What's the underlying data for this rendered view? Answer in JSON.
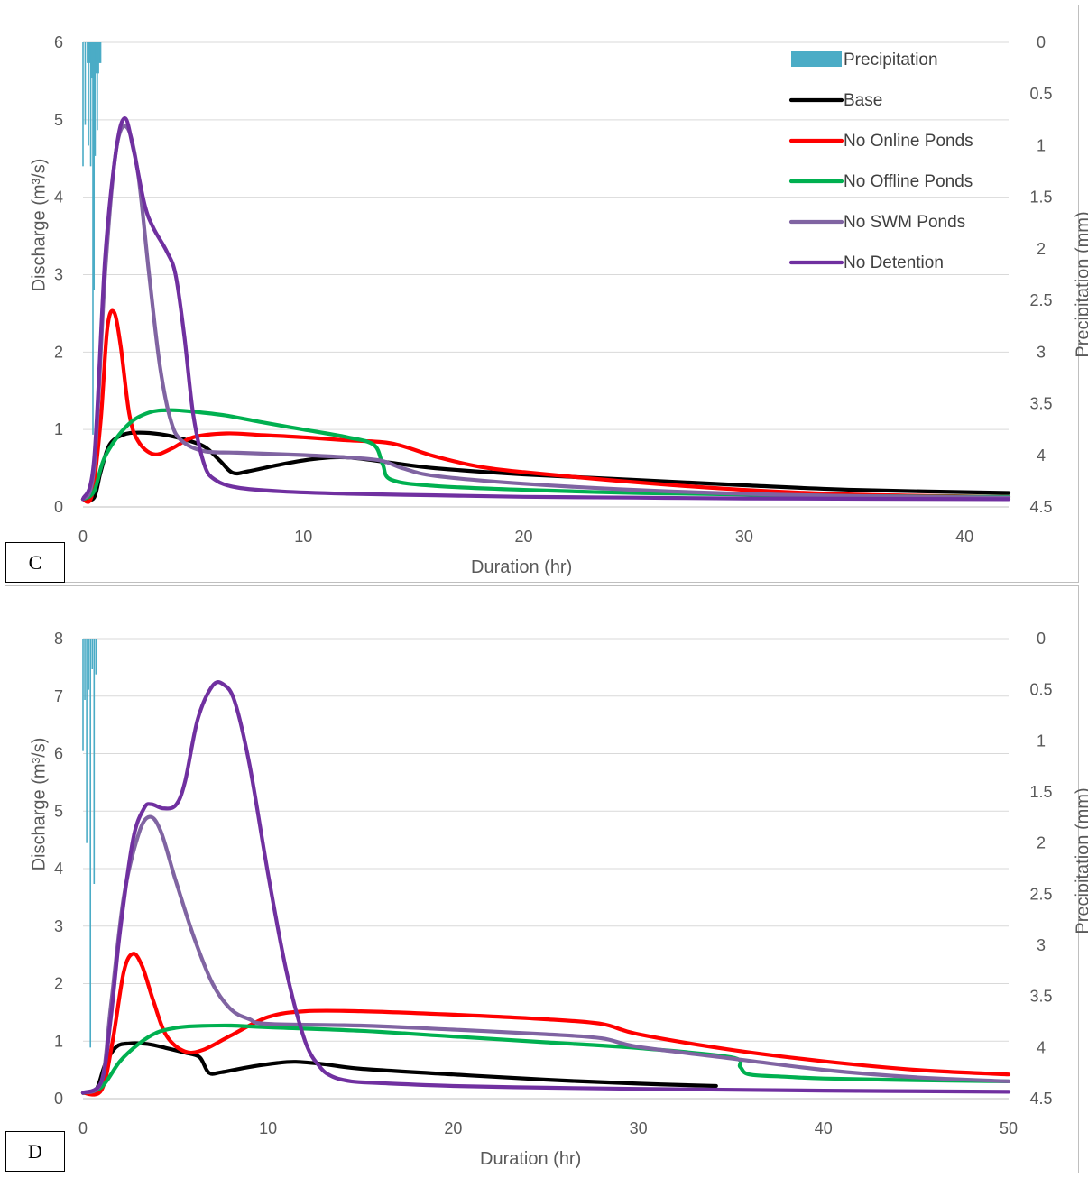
{
  "chart_data": [
    {
      "type": "line",
      "panel_label": "C",
      "xlabel": "Duration (hr)",
      "ylabel": "Discharge (m³/s)",
      "y2label": "Precipitation (mm)",
      "xlim": [
        0,
        42
      ],
      "xticks": [
        0,
        10,
        20,
        30,
        40
      ],
      "ylim": [
        0,
        6
      ],
      "yticks": [
        0,
        1,
        2,
        3,
        4,
        5,
        6
      ],
      "y2lim": [
        0,
        4.5
      ],
      "y2reversed": true,
      "y2ticks": [
        0,
        0.5,
        1,
        1.5,
        2,
        2.5,
        3,
        3.5,
        4,
        4.5
      ],
      "legend_position": "top-right",
      "precipitation": {
        "name": "Precipitation",
        "color": "#4BACC6",
        "x": [
          0,
          0.1,
          0.2,
          0.25,
          0.3,
          0.35,
          0.4,
          0.45,
          0.5,
          0.55,
          0.6,
          0.65,
          0.7,
          0.75,
          0.8
        ],
        "values": [
          1.2,
          0.8,
          0.2,
          1.0,
          0.2,
          1.2,
          0.35,
          3.8,
          2.4,
          1.1,
          0.3,
          0.85,
          0.3,
          0.2,
          0.2
        ]
      },
      "series": [
        {
          "name": "Base",
          "color": "#000000",
          "x": [
            0,
            0.5,
            0.8,
            1.2,
            1.8,
            2.5,
            3.5,
            4.5,
            5.5,
            6.2,
            6.8,
            7.5,
            9,
            10.5,
            12,
            14,
            16,
            20,
            25,
            30,
            35,
            42
          ],
          "values": [
            0.1,
            0.12,
            0.45,
            0.8,
            0.93,
            0.96,
            0.94,
            0.88,
            0.78,
            0.6,
            0.44,
            0.46,
            0.55,
            0.62,
            0.64,
            0.57,
            0.5,
            0.42,
            0.35,
            0.28,
            0.22,
            0.18
          ]
        },
        {
          "name": "No Online Ponds",
          "color": "#FF0000",
          "x": [
            0,
            0.4,
            0.8,
            1.1,
            1.4,
            1.7,
            2.1,
            2.5,
            3.2,
            4,
            5,
            6.5,
            8,
            10,
            12,
            14,
            16,
            18,
            20,
            25,
            30,
            35,
            42
          ],
          "values": [
            0.1,
            0.15,
            1.1,
            2.3,
            2.52,
            2.1,
            1.2,
            0.85,
            0.68,
            0.75,
            0.9,
            0.95,
            0.93,
            0.9,
            0.86,
            0.82,
            0.65,
            0.52,
            0.45,
            0.32,
            0.22,
            0.16,
            0.13
          ]
        },
        {
          "name": "No Offline Ponds",
          "color": "#00B050",
          "x": [
            0,
            0.5,
            1,
            2,
            3,
            4,
            5,
            6.5,
            8,
            10,
            12,
            13.2,
            13.6,
            14,
            16,
            20,
            25,
            30,
            35,
            42
          ],
          "values": [
            0.1,
            0.2,
            0.65,
            1.05,
            1.22,
            1.25,
            1.23,
            1.18,
            1.1,
            1.0,
            0.9,
            0.8,
            0.55,
            0.35,
            0.27,
            0.22,
            0.18,
            0.16,
            0.14,
            0.13
          ]
        },
        {
          "name": "No SWM Ponds",
          "color": "#8064A2",
          "x": [
            0,
            0.5,
            1,
            1.5,
            2,
            2.5,
            3,
            3.5,
            4,
            4.5,
            5.5,
            7,
            10,
            12,
            13.5,
            14.5,
            16,
            20,
            25,
            30,
            35,
            42
          ],
          "values": [
            0.1,
            0.5,
            3.0,
            4.6,
            4.9,
            4.3,
            3.0,
            1.8,
            1.1,
            0.85,
            0.72,
            0.7,
            0.67,
            0.64,
            0.6,
            0.5,
            0.4,
            0.3,
            0.22,
            0.17,
            0.14,
            0.12
          ]
        },
        {
          "name": "No Detention",
          "color": "#7030A0",
          "x": [
            0,
            0.5,
            1,
            1.5,
            1.9,
            2.3,
            2.8,
            3.2,
            3.8,
            4.2,
            4.6,
            5,
            5.5,
            6,
            7,
            9,
            12,
            16,
            20,
            25,
            30,
            42
          ],
          "values": [
            0.1,
            0.6,
            3.2,
            4.6,
            5.02,
            4.6,
            3.9,
            3.6,
            3.3,
            3.0,
            2.2,
            1.2,
            0.55,
            0.35,
            0.25,
            0.2,
            0.17,
            0.15,
            0.13,
            0.12,
            0.11,
            0.1
          ]
        }
      ]
    },
    {
      "type": "line",
      "panel_label": "D",
      "xlabel": "Duration (hr)",
      "ylabel": "Discharge (m³/s)",
      "y2label": "Precipitation (mm)",
      "xlim": [
        0,
        50
      ],
      "xticks": [
        0,
        10,
        20,
        30,
        40,
        50
      ],
      "ylim": [
        0,
        8
      ],
      "yticks": [
        0,
        1,
        2,
        3,
        4,
        5,
        6,
        7,
        8
      ],
      "y2lim": [
        0,
        4.5
      ],
      "y2reversed": true,
      "y2ticks": [
        0,
        0.5,
        1,
        1.5,
        2,
        2.5,
        3,
        3.5,
        4,
        4.5
      ],
      "precipitation": {
        "name": "Precipitation",
        "color": "#4BACC6",
        "x": [
          0,
          0.1,
          0.2,
          0.3,
          0.4,
          0.5,
          0.6,
          0.7
        ],
        "values": [
          1.1,
          0.6,
          2.0,
          0.5,
          4.0,
          0.3,
          2.4,
          0.35
        ]
      },
      "series": [
        {
          "name": "Base",
          "color": "#000000",
          "x": [
            0,
            0.7,
            1.2,
            1.8,
            2.5,
            3.5,
            4.5,
            5.5,
            6.3,
            6.8,
            7.5,
            9,
            10.5,
            11.5,
            13,
            15,
            20,
            25,
            30,
            34.2
          ],
          "values": [
            0.1,
            0.15,
            0.6,
            0.9,
            0.96,
            0.95,
            0.88,
            0.8,
            0.72,
            0.45,
            0.46,
            0.55,
            0.62,
            0.64,
            0.6,
            0.52,
            0.42,
            0.33,
            0.26,
            0.22
          ]
        },
        {
          "name": "No Online Ponds",
          "color": "#FF0000",
          "x": [
            0,
            1,
            1.6,
            2.2,
            2.7,
            3.2,
            3.8,
            4.5,
            5.5,
            6.5,
            8,
            10,
            12,
            15,
            20,
            25,
            28,
            30,
            35,
            40,
            45,
            50
          ],
          "values": [
            0.1,
            0.15,
            1.0,
            2.2,
            2.52,
            2.3,
            1.7,
            1.1,
            0.82,
            0.85,
            1.1,
            1.42,
            1.52,
            1.52,
            1.46,
            1.38,
            1.3,
            1.12,
            0.85,
            0.65,
            0.5,
            0.42
          ]
        },
        {
          "name": "No Offline Ponds",
          "color": "#00B050",
          "x": [
            0,
            1,
            2,
            3,
            4,
            5,
            6,
            8,
            10,
            15,
            20,
            25,
            30,
            35,
            35.5,
            36,
            38,
            40,
            45,
            50
          ],
          "values": [
            0.1,
            0.2,
            0.65,
            0.95,
            1.15,
            1.23,
            1.26,
            1.27,
            1.24,
            1.18,
            1.08,
            0.98,
            0.88,
            0.72,
            0.55,
            0.42,
            0.38,
            0.35,
            0.32,
            0.3
          ]
        },
        {
          "name": "No SWM Ponds",
          "color": "#8064A2",
          "x": [
            0,
            1,
            1.5,
            2.2,
            3,
            3.6,
            4.2,
            5,
            6,
            7,
            8,
            9,
            10,
            15,
            20,
            25,
            28,
            30,
            35,
            40,
            45,
            50
          ],
          "values": [
            0.1,
            0.3,
            1.6,
            3.5,
            4.6,
            4.9,
            4.65,
            3.8,
            2.8,
            2.0,
            1.55,
            1.38,
            1.3,
            1.27,
            1.2,
            1.12,
            1.05,
            0.9,
            0.7,
            0.5,
            0.37,
            0.3
          ]
        },
        {
          "name": "No Detention",
          "color": "#7030A0",
          "x": [
            0,
            1,
            1.5,
            2,
            2.7,
            3.3,
            3.7,
            4.3,
            5,
            5.5,
            6.2,
            7,
            7.6,
            8.2,
            9,
            10,
            11,
            12,
            12.8,
            13.5,
            14.5,
            16,
            20,
            25,
            30,
            40,
            50
          ],
          "values": [
            0.1,
            0.3,
            1.4,
            2.9,
            4.5,
            5.05,
            5.12,
            5.05,
            5.1,
            5.5,
            6.6,
            7.18,
            7.2,
            6.9,
            5.8,
            3.9,
            2.2,
            1.0,
            0.55,
            0.38,
            0.3,
            0.27,
            0.22,
            0.19,
            0.17,
            0.14,
            0.12
          ]
        }
      ]
    }
  ]
}
